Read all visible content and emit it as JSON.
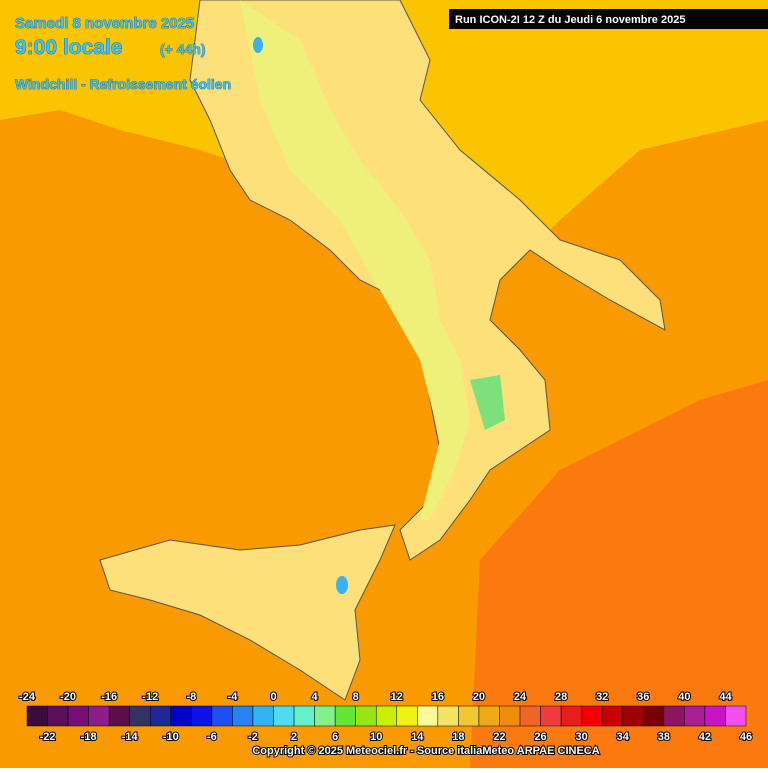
{
  "header": {
    "date": "Samedi 8 novembre 2025",
    "time": "9:00 locale",
    "lead": "(+ 44h)",
    "product": "Windchill - Refroissement éolien"
  },
  "run": "Run ICON-2I 12 Z du Jeudi 6 novembre 2025",
  "legend": {
    "ticks": [
      -24,
      -22,
      -20,
      -18,
      -16,
      -14,
      -12,
      -10,
      -8,
      -6,
      -4,
      -2,
      0,
      2,
      4,
      6,
      8,
      10,
      12,
      14,
      16,
      18,
      20,
      22,
      24,
      26,
      28,
      30,
      32,
      34,
      36,
      38,
      40,
      42,
      44,
      46
    ],
    "colors": [
      "#3c0a3c",
      "#5a0f5a",
      "#780f78",
      "#8c1e8c",
      "#5a0f4b",
      "#323264",
      "#1e2896",
      "#0000c8",
      "#0a14e6",
      "#1e50f0",
      "#2882f0",
      "#32b4f0",
      "#50dcf0",
      "#64f0c8",
      "#82f08c",
      "#64e632",
      "#96e614",
      "#c8f000",
      "#f0f014",
      "#fafa96",
      "#f0e664",
      "#f0c832",
      "#f0aa14",
      "#f08c0a",
      "#f06428",
      "#f03c3c",
      "#e61e1e",
      "#f00000",
      "#c80000",
      "#a00000",
      "#780000",
      "#8c1464",
      "#aa1e96",
      "#c814c8",
      "#f050f0"
    ]
  },
  "copyright": "Copyright © 2025 Meteociel.fr - Source italiaMeteo ARPAE CINECA"
}
